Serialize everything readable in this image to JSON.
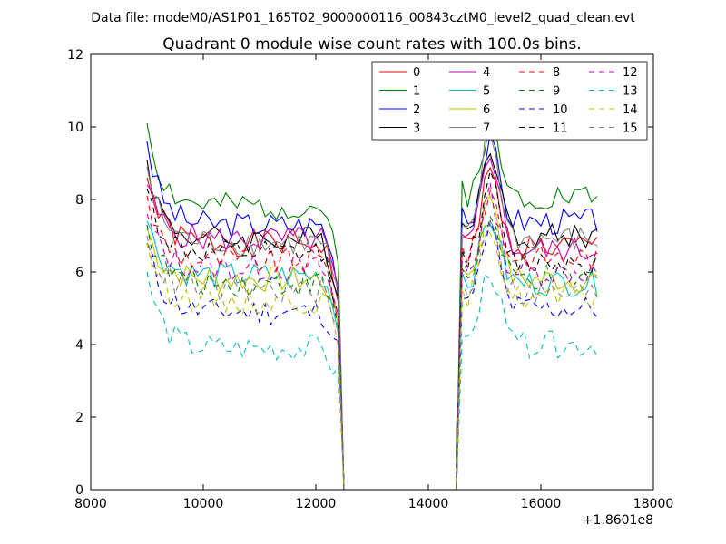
{
  "chart_data": {
    "type": "line",
    "suptitle": "Data file: modeM0/AS1P01_165T02_9000000116_00843cztM0_level2_quad_clean.evt",
    "title": "Quadrant 0 module wise count rates with 100.0s bins.",
    "xlabel": "",
    "ylabel": "",
    "xlim": [
      8000,
      18000
    ],
    "ylim": [
      0,
      12
    ],
    "x_ticks": [
      8000,
      10000,
      12000,
      14000,
      16000,
      18000
    ],
    "y_ticks": [
      0,
      2,
      4,
      6,
      8,
      10,
      12
    ],
    "x_offset_label": "+1.8601e8",
    "legend_position": "top-right",
    "legend_columns": 4,
    "grid": false,
    "x_range": {
      "segment1_start": 9000,
      "segment1_end": 12400,
      "drop_end": 12500,
      "gap_end": 14500,
      "segment2_start": 14600,
      "segment2_end": 17050,
      "step": 100
    },
    "series": [
      {
        "name": "0",
        "color": "#ff0000",
        "dash": "solid",
        "seg1_start": 8.6,
        "seg1_level": 6.8,
        "seg2_peak": 8.7,
        "seg2_level": 6.7
      },
      {
        "name": "1",
        "color": "#008000",
        "dash": "solid",
        "seg1_start": 10.1,
        "seg1_level": 7.8,
        "seg2_peak": 10.0,
        "seg2_level": 8.1
      },
      {
        "name": "2",
        "color": "#0000ff",
        "dash": "solid",
        "seg1_start": 9.6,
        "seg1_level": 7.3,
        "seg2_peak": 9.5,
        "seg2_level": 7.4
      },
      {
        "name": "3",
        "color": "#000000",
        "dash": "solid",
        "seg1_start": 9.1,
        "seg1_level": 6.9,
        "seg2_peak": 9.6,
        "seg2_level": 7.0
      },
      {
        "name": "4",
        "color": "#bf00bf",
        "dash": "solid",
        "seg1_start": 8.4,
        "seg1_level": 6.9,
        "seg2_peak": 9.4,
        "seg2_level": 6.6
      },
      {
        "name": "5",
        "color": "#00bfbf",
        "dash": "solid",
        "seg1_start": 7.4,
        "seg1_level": 5.9,
        "seg2_peak": 7.5,
        "seg2_level": 5.7
      },
      {
        "name": "6",
        "color": "#bfbf00",
        "dash": "solid",
        "seg1_start": 7.2,
        "seg1_level": 5.8,
        "seg2_peak": 8.2,
        "seg2_level": 5.8
      },
      {
        "name": "7",
        "color": "#808080",
        "dash": "solid",
        "seg1_start": 8.9,
        "seg1_level": 6.8,
        "seg2_peak": 9.8,
        "seg2_level": 6.9
      },
      {
        "name": "8",
        "color": "#ff0000",
        "dash": "dashed",
        "seg1_start": 8.1,
        "seg1_level": 6.3,
        "seg2_peak": 8.2,
        "seg2_level": 6.4
      },
      {
        "name": "9",
        "color": "#008000",
        "dash": "dashed",
        "seg1_start": 7.3,
        "seg1_level": 5.7,
        "seg2_peak": 7.4,
        "seg2_level": 5.8
      },
      {
        "name": "10",
        "color": "#0000ff",
        "dash": "dashed",
        "seg1_start": 6.8,
        "seg1_level": 4.9,
        "seg2_peak": 7.2,
        "seg2_level": 5.0
      },
      {
        "name": "11",
        "color": "#000000",
        "dash": "dashed",
        "seg1_start": 8.3,
        "seg1_level": 6.5,
        "seg2_peak": 8.5,
        "seg2_level": 6.3
      },
      {
        "name": "12",
        "color": "#bf00bf",
        "dash": "dashed",
        "seg1_start": 7.6,
        "seg1_level": 6.1,
        "seg2_peak": 8.1,
        "seg2_level": 6.0
      },
      {
        "name": "13",
        "color": "#00bfbf",
        "dash": "dashed",
        "seg1_start": 6.0,
        "seg1_level": 3.9,
        "seg2_peak": 6.1,
        "seg2_level": 4.0
      },
      {
        "name": "14",
        "color": "#bfbf00",
        "dash": "dashed",
        "seg1_start": 6.8,
        "seg1_level": 5.2,
        "seg2_peak": 7.3,
        "seg2_level": 5.3
      },
      {
        "name": "15",
        "color": "#808080",
        "dash": "dashed",
        "seg1_start": 7.0,
        "seg1_level": 5.5,
        "seg2_peak": 7.6,
        "seg2_level": 5.4
      }
    ]
  }
}
